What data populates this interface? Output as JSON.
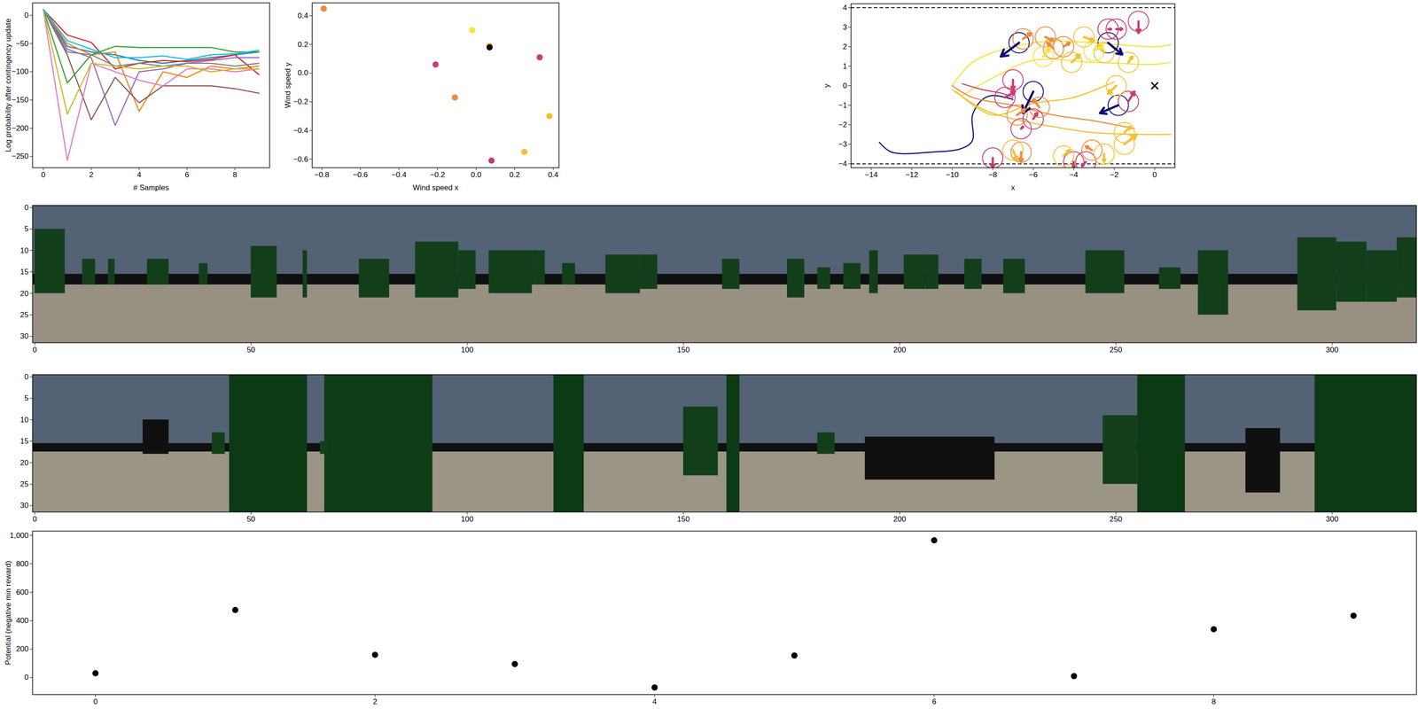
{
  "chart_data": [
    {
      "type": "line",
      "x_label": "# Samples",
      "y_label": "Log probability after contingency update",
      "x": [
        0,
        1,
        2,
        3,
        4,
        5,
        6,
        7,
        8,
        9
      ],
      "xlim": [
        -0.45,
        9.45
      ],
      "xticks": [
        0,
        2,
        4,
        6,
        8
      ],
      "ylim": [
        -270,
        22
      ],
      "yticks": [
        -250,
        -200,
        -150,
        -100,
        -50,
        0
      ],
      "series": [
        {
          "color": "#1f77b4",
          "values": [
            10,
            -55,
            -65,
            -70,
            -80,
            -85,
            -80,
            -75,
            -70,
            -65
          ]
        },
        {
          "color": "#ff7f0e",
          "values": [
            10,
            -50,
            -70,
            -65,
            -170,
            -100,
            -110,
            -90,
            -95,
            -90
          ]
        },
        {
          "color": "#2ca02c",
          "values": [
            10,
            -120,
            -70,
            -55,
            -57,
            -57,
            -57,
            -57,
            -65,
            -65
          ]
        },
        {
          "color": "#d62728",
          "values": [
            10,
            -35,
            -48,
            -95,
            -85,
            -80,
            -82,
            -78,
            -70,
            -105
          ]
        },
        {
          "color": "#9467bd",
          "values": [
            10,
            -60,
            -75,
            -195,
            -100,
            -95,
            -85,
            -80,
            -75,
            -75
          ]
        },
        {
          "color": "#8c564b",
          "values": [
            10,
            -70,
            -185,
            -110,
            -155,
            -125,
            -125,
            -125,
            -130,
            -138
          ]
        },
        {
          "color": "#e377c2",
          "values": [
            10,
            -257,
            -85,
            -100,
            -115,
            -125,
            -95,
            -95,
            -100,
            -95
          ]
        },
        {
          "color": "#7f7f7f",
          "values": [
            10,
            -65,
            -70,
            -90,
            -85,
            -90,
            -85,
            -85,
            -90,
            -85
          ]
        },
        {
          "color": "#bcbd22",
          "values": [
            10,
            -175,
            -85,
            -90,
            -95,
            -90,
            -90,
            -100,
            -95,
            -95
          ]
        },
        {
          "color": "#17becf",
          "values": [
            10,
            -45,
            -60,
            -75,
            -75,
            -72,
            -78,
            -70,
            -68,
            -62
          ]
        }
      ]
    },
    {
      "type": "scatter",
      "x_label": "Wind speed x",
      "y_label": "Wind speed y",
      "x": [
        -0.79,
        -0.02,
        0.07,
        0.07,
        -0.21,
        -0.11,
        0.33,
        0.38,
        0.25,
        0.08
      ],
      "values": [
        0.45,
        0.3,
        0.19,
        0.18,
        0.06,
        -0.17,
        0.11,
        -0.3,
        -0.55,
        -0.61
      ],
      "colors": [
        "#f08a3c",
        "#f5e43a",
        "#f7c02e",
        "#000000",
        "#cc3b6e",
        "#f08a3c",
        "#cc3b6e",
        "#f7c02e",
        "#f7c02e",
        "#c8397a"
      ],
      "xlim": [
        -0.85,
        0.43
      ],
      "xticks": [
        -0.8,
        -0.6,
        -0.4,
        -0.2,
        0.0,
        0.2,
        0.4
      ],
      "ylim": [
        -0.66,
        0.49
      ],
      "yticks": [
        -0.6,
        -0.4,
        -0.2,
        0.0,
        0.2,
        0.4
      ]
    },
    {
      "type": "trajectory",
      "x_label": "x",
      "y_label": "y",
      "xlim": [
        -15,
        1
      ],
      "xticks": [
        -14,
        -12,
        -10,
        -8,
        -6,
        -4,
        -2,
        0
      ],
      "ylim": [
        -4.2,
        4.2
      ],
      "yticks": [
        -4,
        -3,
        -2,
        -1,
        0,
        1,
        2,
        3,
        4
      ],
      "hlines": {
        "values": [
          -4,
          4
        ],
        "line_style": "dashed",
        "color": "#000000"
      },
      "goal": {
        "x": 0,
        "y": 0,
        "marker": "x",
        "color": "#000000"
      },
      "lines": [
        {
          "color": "#0a0a7a",
          "x": [
            -13.6,
            -13.0,
            -11.0,
            -9.5,
            -9.0,
            -9.0,
            -8.5,
            -8.0,
            -7.0
          ],
          "y": [
            -2.9,
            -3.4,
            -3.4,
            -3.2,
            -2.8,
            -1.5,
            -0.7,
            -0.5,
            -0.7
          ]
        },
        {
          "color": "#f5e43a",
          "x": [
            -10.0,
            -9.0,
            -7.0,
            -5.0,
            -3.0,
            0.0,
            0.8
          ],
          "y": [
            0.0,
            1.2,
            2.0,
            2.3,
            2.2,
            2.0,
            2.1
          ]
        },
        {
          "color": "#f5e43a",
          "x": [
            -9.5,
            -8.0,
            -6.0,
            -3.0,
            0.0,
            0.8
          ],
          "y": [
            -0.5,
            0.4,
            1.3,
            1.2,
            1.1,
            1.2
          ]
        },
        {
          "color": "#f7c02e",
          "x": [
            -9.8,
            -8.0,
            -6.0,
            -4.0,
            -2.0
          ],
          "y": [
            -0.3,
            -1.5,
            -0.9,
            -0.6,
            0.2
          ]
        },
        {
          "color": "#f08a3c",
          "x": [
            -10.0,
            -9.0,
            -7.0,
            -5.0,
            -3.0,
            -1.0
          ],
          "y": [
            0.0,
            -0.6,
            -1.0,
            -1.5,
            -1.8,
            -2.2
          ]
        },
        {
          "color": "#f7c02e",
          "x": [
            -10.0,
            -8.5,
            -7.0,
            -5.0,
            -3.0,
            0.8
          ],
          "y": [
            -0.2,
            -1.2,
            -1.7,
            -2.1,
            -2.4,
            -2.5
          ]
        },
        {
          "color": "#cc3b6e",
          "x": [
            -9.5,
            -8.5,
            -7.5,
            -7.0
          ],
          "y": [
            0.1,
            -0.2,
            -0.4,
            -0.6
          ]
        }
      ],
      "agents": [
        {
          "x": -6.7,
          "y": 2.2,
          "dx": -0.9,
          "dy": -0.7,
          "color": "#0a0a7a"
        },
        {
          "x": -6.0,
          "y": -0.3,
          "dx": -0.5,
          "dy": -1.1,
          "color": "#0a0a7a"
        },
        {
          "x": -2.3,
          "y": 2.2,
          "dx": 0.7,
          "dy": -0.6,
          "color": "#0a0a7a"
        },
        {
          "x": -1.8,
          "y": -1.0,
          "dx": -0.9,
          "dy": -0.4,
          "color": "#0a0a7a"
        },
        {
          "x": -2.3,
          "y": 2.9,
          "dx": 0.15,
          "dy": 0.0,
          "color": "#cc3b6e"
        },
        {
          "x": -1.9,
          "y": 2.9,
          "dx": 0.3,
          "dy": 0.0,
          "color": "#cc3b6e"
        },
        {
          "x": -0.8,
          "y": 3.3,
          "dx": 0.0,
          "dy": -0.6,
          "color": "#cc3b6e"
        },
        {
          "x": -7.0,
          "y": 0.3,
          "dx": 0.0,
          "dy": -0.5,
          "color": "#cc3b6e"
        },
        {
          "x": -7.4,
          "y": -0.6,
          "dx": 0.5,
          "dy": 0.3,
          "color": "#cc3b6e"
        },
        {
          "x": -6.6,
          "y": -2.2,
          "dx": 0.1,
          "dy": 0.1,
          "color": "#cc3b6e"
        },
        {
          "x": -6.0,
          "y": -1.7,
          "dx": 0.2,
          "dy": 0.3,
          "color": "#cc3b6e"
        },
        {
          "x": -8.0,
          "y": -3.7,
          "dx": 0.0,
          "dy": -0.5,
          "color": "#cc3b6e"
        },
        {
          "x": -4.0,
          "y": -3.9,
          "dx": 0.0,
          "dy": -0.3,
          "color": "#cc3b6e"
        },
        {
          "x": -3.4,
          "y": -3.9,
          "dx": -0.2,
          "dy": -0.2,
          "color": "#cc3b6e"
        },
        {
          "x": -1.3,
          "y": -0.8,
          "dx": 0.3,
          "dy": 0.5,
          "color": "#cc3b6e"
        },
        {
          "x": -6.5,
          "y": 2.4,
          "dx": 0.4,
          "dy": 0.3,
          "color": "#f08a3c"
        },
        {
          "x": -5.4,
          "y": 2.5,
          "dx": 0.4,
          "dy": -0.2,
          "color": "#f08a3c"
        },
        {
          "x": -5.0,
          "y": 1.9,
          "dx": -0.3,
          "dy": 0.3,
          "color": "#f08a3c"
        },
        {
          "x": -6.8,
          "y": -1.5,
          "dx": 0.4,
          "dy": 0.3,
          "color": "#f08a3c"
        },
        {
          "x": -6.6,
          "y": -3.4,
          "dx": 0.0,
          "dy": -0.5,
          "color": "#f08a3c"
        },
        {
          "x": -3.1,
          "y": -3.3,
          "dx": -0.3,
          "dy": 0.2,
          "color": "#f08a3c"
        },
        {
          "x": -5.7,
          "y": -1.1,
          "dx": -0.3,
          "dy": 0.4,
          "color": "#f08a3c"
        },
        {
          "x": -4.5,
          "y": 2.0,
          "dx": 0.3,
          "dy": 0.2,
          "color": "#f08a3c"
        },
        {
          "x": -3.5,
          "y": 2.5,
          "dx": 0.5,
          "dy": -0.2,
          "color": "#f7c02e"
        },
        {
          "x": -4.1,
          "y": 1.2,
          "dx": 0.4,
          "dy": 0.4,
          "color": "#f7c02e"
        },
        {
          "x": -2.5,
          "y": 1.7,
          "dx": -0.3,
          "dy": 0.4,
          "color": "#f7c02e"
        },
        {
          "x": -1.3,
          "y": 1.2,
          "dx": 0.2,
          "dy": 0.3,
          "color": "#f7c02e"
        },
        {
          "x": -1.5,
          "y": -2.4,
          "dx": 0.3,
          "dy": 0.3,
          "color": "#f7c02e"
        },
        {
          "x": -1.5,
          "y": -3.0,
          "dx": 0.6,
          "dy": 0.5,
          "color": "#f7c02e"
        },
        {
          "x": -4.5,
          "y": -3.6,
          "dx": 0.3,
          "dy": 0.3,
          "color": "#f7c02e"
        },
        {
          "x": -2.5,
          "y": -3.5,
          "dx": 0.0,
          "dy": -0.4,
          "color": "#f7c02e"
        },
        {
          "x": -1.9,
          "y": 0.0,
          "dx": -0.4,
          "dy": -0.4,
          "color": "#f7c02e"
        },
        {
          "x": -7.0,
          "y": -3.3,
          "dx": 0.2,
          "dy": -0.5,
          "color": "#f7c02e"
        },
        {
          "x": -5.5,
          "y": 1.5,
          "dx": 0.3,
          "dy": 0.4,
          "color": "#f5e43a"
        },
        {
          "x": -3.0,
          "y": 1.8,
          "dx": 0.4,
          "dy": 0.2,
          "color": "#f5e43a"
        }
      ]
    },
    {
      "type": "image",
      "xlim": [
        -0.5,
        319.5
      ],
      "xticks": [
        0,
        50,
        100,
        150,
        200,
        250,
        300
      ],
      "ylim": [
        31.5,
        -0.5
      ],
      "yticks": [
        0,
        5,
        10,
        15,
        20,
        25,
        30
      ],
      "rects": [
        [
          -0.5,
          319.5,
          -0.5,
          15.5,
          "#536275"
        ],
        [
          -0.5,
          319.5,
          15.5,
          18,
          "#101010"
        ],
        [
          -0.5,
          319.5,
          18,
          31.5,
          "#979083"
        ],
        [
          0,
          7,
          5,
          20,
          "#123f1a"
        ],
        [
          11,
          14,
          12,
          18,
          "#123f1a"
        ],
        [
          17,
          18.5,
          12,
          18,
          "#123f1a"
        ],
        [
          26,
          31,
          12,
          18,
          "#123f1a"
        ],
        [
          38,
          40,
          13,
          18,
          "#123f1a"
        ],
        [
          50,
          56,
          9,
          21,
          "#123f1a"
        ],
        [
          62,
          63,
          10,
          21,
          "#123f1a"
        ],
        [
          75,
          82,
          12,
          21,
          "#123f1a"
        ],
        [
          88,
          98,
          8,
          21,
          "#123f1a"
        ],
        [
          98,
          102,
          10,
          19,
          "#123f1a"
        ],
        [
          105,
          115,
          10,
          20,
          "#123f1a"
        ],
        [
          115,
          118,
          10,
          18,
          "#123f1a"
        ],
        [
          122,
          125,
          13,
          18,
          "#123f1a"
        ],
        [
          132,
          140,
          11,
          20,
          "#123f1a"
        ],
        [
          140,
          144,
          11,
          19,
          "#123f1a"
        ],
        [
          159,
          163,
          12,
          19,
          "#123f1a"
        ],
        [
          174,
          178,
          12,
          21,
          "#123f1a"
        ],
        [
          181,
          184,
          14,
          19,
          "#123f1a"
        ],
        [
          187,
          191,
          13,
          19,
          "#123f1a"
        ],
        [
          193,
          195,
          10,
          20,
          "#123f1a"
        ],
        [
          201,
          206,
          11,
          19,
          "#123f1a"
        ],
        [
          206,
          209,
          11,
          19,
          "#123f1a"
        ],
        [
          215,
          219,
          12,
          19,
          "#123f1a"
        ],
        [
          224,
          229,
          12,
          20,
          "#123f1a"
        ],
        [
          243,
          252,
          10,
          20,
          "#123f1a"
        ],
        [
          260,
          265,
          14,
          19,
          "#123f1a"
        ],
        [
          269,
          276,
          10,
          25,
          "#123f1a"
        ],
        [
          292,
          301,
          7,
          24,
          "#123f1a"
        ],
        [
          301,
          308,
          8,
          22,
          "#123f1a"
        ],
        [
          308,
          315,
          10,
          22,
          "#123f1a"
        ],
        [
          315,
          319.5,
          7,
          21,
          "#123f1a"
        ]
      ]
    },
    {
      "type": "image",
      "xlim": [
        -0.5,
        319.5
      ],
      "xticks": [
        0,
        50,
        100,
        150,
        200,
        250,
        300
      ],
      "ylim": [
        31.5,
        -0.5
      ],
      "yticks": [
        0,
        5,
        10,
        15,
        20,
        25,
        30
      ],
      "rects": [
        [
          -0.5,
          319.5,
          -0.5,
          15.5,
          "#536275"
        ],
        [
          -0.5,
          319.5,
          15.5,
          17.5,
          "#101010"
        ],
        [
          -0.5,
          319.5,
          17.5,
          31.5,
          "#9b9585"
        ],
        [
          25,
          31,
          10,
          18,
          "#101010"
        ],
        [
          192,
          222,
          14,
          24,
          "#101010"
        ],
        [
          280,
          288,
          12,
          27,
          "#101010"
        ],
        [
          45,
          63,
          -0.5,
          31.5,
          "#0c3a14"
        ],
        [
          67,
          92,
          -0.5,
          31.5,
          "#0e3d16"
        ],
        [
          120,
          127,
          -0.5,
          31.5,
          "#0c3a14"
        ],
        [
          160,
          163,
          -0.5,
          31.5,
          "#0c3a14"
        ],
        [
          150,
          158,
          7,
          23,
          "#123f1a"
        ],
        [
          41,
          44,
          13,
          18,
          "#123f1a"
        ],
        [
          66,
          68,
          15,
          18,
          "#123f1a"
        ],
        [
          181,
          185,
          13,
          18,
          "#123f1a"
        ],
        [
          247,
          255,
          9,
          25,
          "#123f1a"
        ],
        [
          255,
          266,
          -0.5,
          31.5,
          "#0c3a14"
        ],
        [
          296,
          319.5,
          -0.5,
          31.5,
          "#0c3a14"
        ]
      ]
    },
    {
      "type": "scatter",
      "y_label": "Potential (negative min reward)",
      "x": [
        0,
        1,
        2,
        3,
        4,
        5,
        6,
        7,
        8,
        9
      ],
      "values": [
        30,
        475,
        160,
        95,
        -70,
        155,
        965,
        10,
        340,
        435
      ],
      "color": "#000000",
      "xlim": [
        -0.45,
        9.45
      ],
      "xticks": [
        0,
        2,
        4,
        6,
        8
      ],
      "ylim": [
        -120,
        1030
      ],
      "yticks": [
        0,
        200,
        400,
        600,
        800,
        1000
      ]
    }
  ]
}
